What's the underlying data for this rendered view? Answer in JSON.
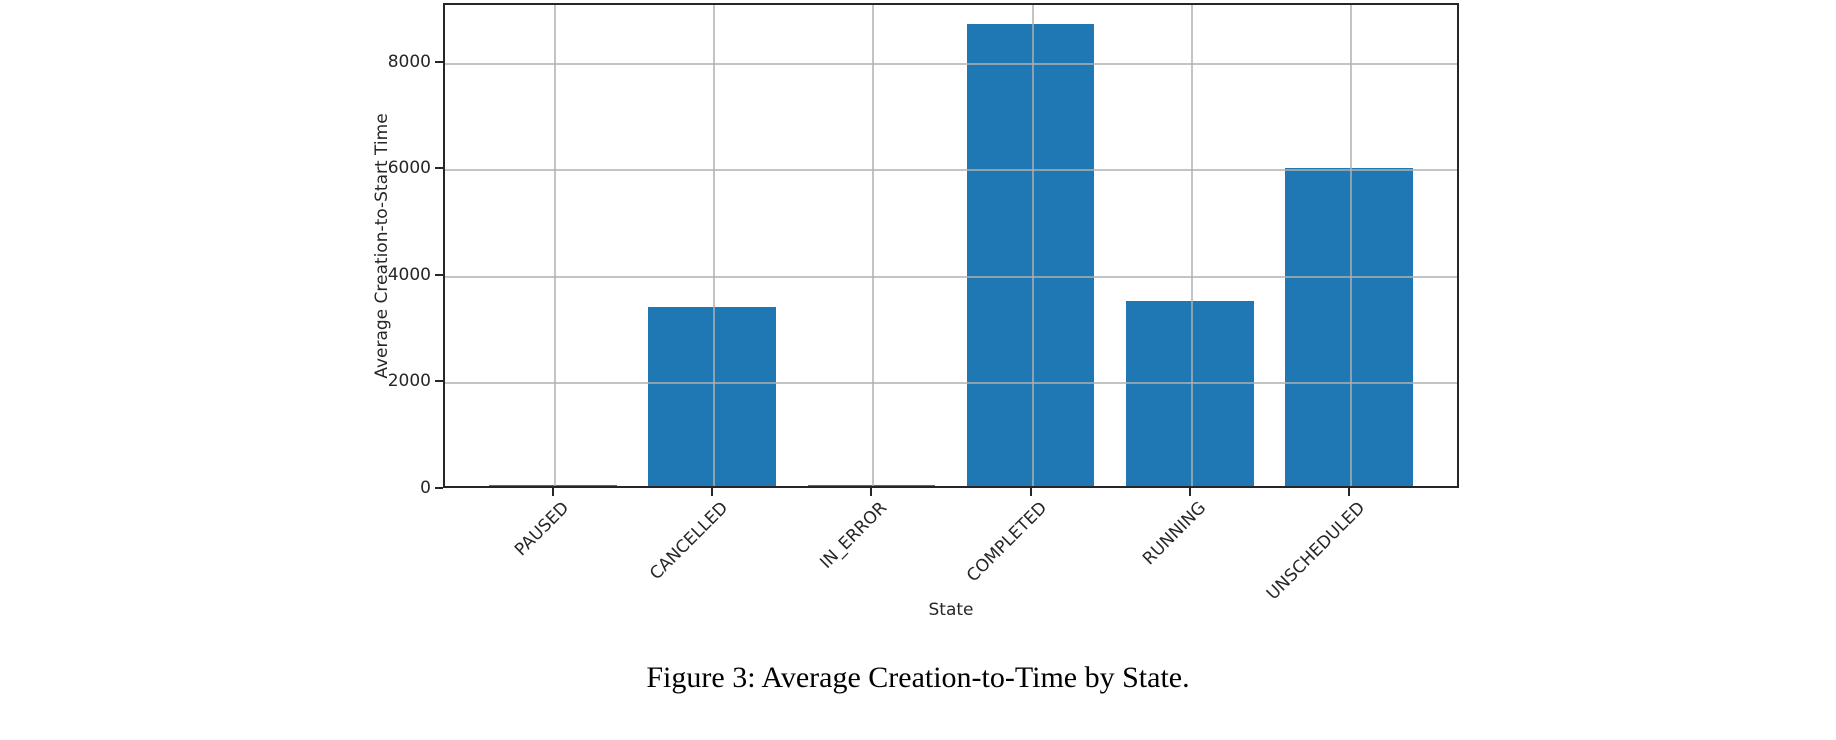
{
  "figure": {
    "caption": "Figure 3: Average Creation-to-Time by State."
  },
  "chart_data": {
    "type": "bar",
    "categories": [
      "PAUSED",
      "CANCELLED",
      "IN_ERROR",
      "COMPLETED",
      "RUNNING",
      "UNSCHEDULED"
    ],
    "values": [
      50,
      3400,
      50,
      8700,
      3500,
      6000
    ],
    "title": "",
    "xlabel": "State",
    "ylabel": "Average Creation-to-Start Time",
    "yticks": [
      0,
      2000,
      4000,
      6000,
      8000
    ],
    "ylim": [
      0,
      9100
    ],
    "xlim": [
      -0.69,
      5.69
    ],
    "bar_width": 0.8,
    "bar_color": "#1f77b4",
    "grid": true,
    "grid_color": "#b0b0b0",
    "x_tick_rotation": 45,
    "legend": "none"
  }
}
